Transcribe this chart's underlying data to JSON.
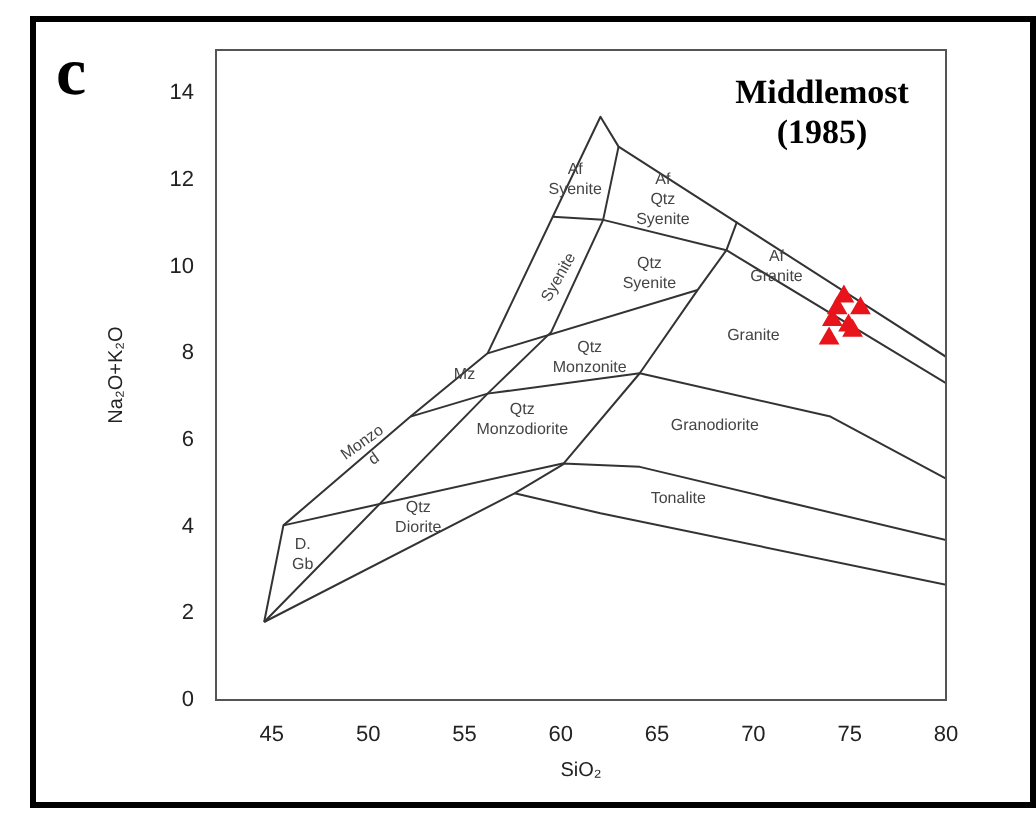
{
  "chart_data": {
    "type": "scatter",
    "title": "Middlemost (1985)",
    "xlabel": "SiO₂",
    "ylabel": "Na₂O+K₂O",
    "xlim": [
      42.1,
      80
    ],
    "ylim": [
      0,
      15
    ],
    "xticks": [
      45,
      50,
      55,
      60,
      65,
      70,
      75,
      80
    ],
    "yticks": [
      0,
      2,
      4,
      6,
      8,
      10,
      12,
      14
    ],
    "grid": false,
    "legend": false,
    "annotations": [
      "c",
      "Af\nSyenite",
      "Af\nQtz\nSyenite",
      "Syenite",
      "Qtz\nSyenite",
      "Af\nGranite",
      "Granite",
      "Mz",
      "Qtz\nMonzonite",
      "Qtz\nMonzodiorite",
      "Monzo\nd",
      "D.\nGb",
      "Qtz\nDiorite",
      "Granodiorite",
      "Tonalite"
    ],
    "series": [
      {
        "type": "scatter",
        "color": "#e8141b",
        "marker": "triangle",
        "x": [
          74.7,
          75.56,
          74.35,
          74.1,
          74.94,
          75.15,
          73.93
        ],
        "values": [
          9.31,
          9.04,
          9.04,
          8.77,
          8.64,
          8.52,
          8.34
        ]
      },
      {
        "type": "line",
        "color": "#333333",
        "x": [
          44.6,
          45.6,
          52.2,
          56.2,
          62.06,
          63.0,
          80
        ],
        "values": [
          1.8,
          4.03,
          6.54,
          8.0,
          13.46,
          12.77,
          7.92
        ]
      },
      {
        "type": "line",
        "color": "#333333",
        "x": [
          44.6,
          56.2,
          59.5,
          62.2,
          63.0
        ],
        "values": [
          1.8,
          7.07,
          8.49,
          11.08,
          12.77
        ]
      },
      {
        "type": "line",
        "color": "#333333",
        "x": [
          56.2,
          67.1
        ],
        "values": [
          8.0,
          9.46
        ]
      },
      {
        "type": "line",
        "color": "#333333",
        "x": [
          52.2,
          56.2,
          64.1,
          74.0,
          80
        ],
        "values": [
          6.54,
          7.07,
          7.54,
          6.54,
          5.11
        ]
      },
      {
        "type": "line",
        "color": "#333333",
        "x": [
          59.58,
          62.2,
          68.6,
          80
        ],
        "values": [
          11.15,
          11.08,
          10.38,
          7.31
        ]
      },
      {
        "type": "line",
        "color": "#333333",
        "x": [
          44.6,
          57.6,
          60.1,
          64.1,
          67.1,
          68.6,
          69.15
        ],
        "values": [
          1.8,
          4.77,
          5.43,
          7.54,
          9.46,
          10.38,
          11.04
        ]
      },
      {
        "type": "line",
        "color": "#333333",
        "x": [
          45.6,
          60.1,
          64.1,
          80
        ],
        "values": [
          4.03,
          5.46,
          5.38,
          3.69
        ]
      },
      {
        "type": "line",
        "color": "#333333",
        "x": [
          57.6,
          62.06,
          80
        ],
        "values": [
          4.77,
          4.31,
          2.66
        ]
      }
    ]
  }
}
